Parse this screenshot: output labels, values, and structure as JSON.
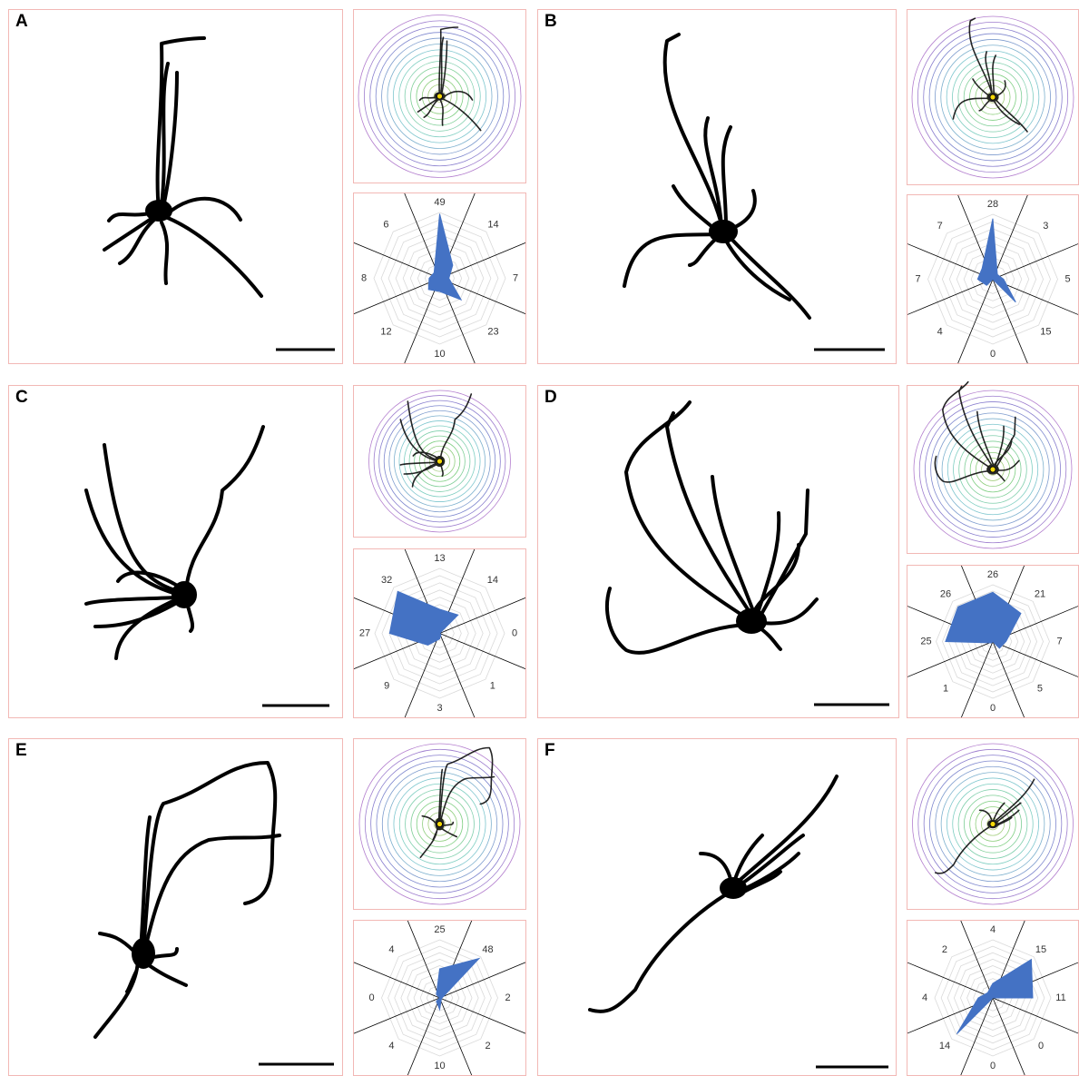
{
  "chart_data": [
    {
      "type": "radar",
      "panel": "A",
      "values": [
        49,
        14,
        7,
        23,
        10,
        12,
        8,
        6
      ],
      "ylim": [
        0,
        50
      ],
      "color": "#4472c4"
    },
    {
      "type": "radar",
      "panel": "B",
      "values": [
        28,
        3,
        5,
        15,
        0,
        4,
        7,
        7
      ],
      "ylim": [
        0,
        30
      ],
      "color": "#4472c4"
    },
    {
      "type": "radar",
      "panel": "C",
      "values": [
        13,
        14,
        0,
        1,
        3,
        9,
        27,
        32
      ],
      "ylim": [
        0,
        35
      ],
      "color": "#4472c4"
    },
    {
      "type": "radar",
      "panel": "D",
      "values": [
        26,
        21,
        7,
        5,
        0,
        1,
        25,
        26
      ],
      "ylim": [
        0,
        30
      ],
      "color": "#4472c4"
    },
    {
      "type": "radar",
      "panel": "E",
      "values": [
        25,
        48,
        2,
        2,
        10,
        4,
        0,
        4
      ],
      "ylim": [
        0,
        50
      ],
      "color": "#4472c4"
    },
    {
      "type": "radar",
      "panel": "F",
      "values": [
        4,
        15,
        11,
        0,
        0,
        14,
        4,
        2
      ],
      "ylim": [
        0,
        16
      ],
      "color": "#4472c4"
    }
  ]
}
